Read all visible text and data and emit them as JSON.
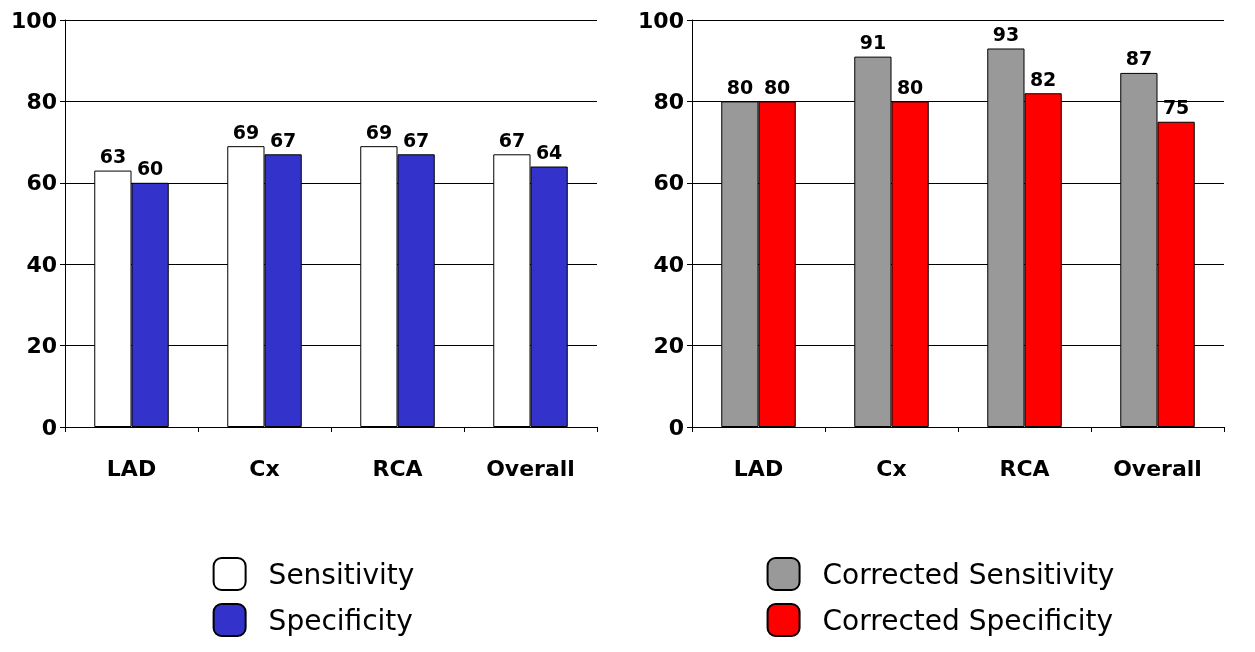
{
  "chart_data": [
    {
      "type": "bar",
      "categories": [
        "LAD",
        "Cx",
        "RCA",
        "Overall"
      ],
      "series": [
        {
          "name": "Sensitivity",
          "color": "#ffffff",
          "values": [
            63,
            69,
            69,
            67
          ]
        },
        {
          "name": "Specificity",
          "color": "#3333cc",
          "values": [
            60,
            67,
            67,
            64
          ]
        }
      ],
      "ylim": [
        0,
        100
      ],
      "yticks": [
        0,
        20,
        40,
        60,
        80,
        100
      ],
      "grid": "y",
      "legend": "bottom",
      "data_labels": true
    },
    {
      "type": "bar",
      "categories": [
        "LAD",
        "Cx",
        "RCA",
        "Overall"
      ],
      "series": [
        {
          "name": "Corrected Sensitivity",
          "color": "#999999",
          "values": [
            80,
            91,
            93,
            87
          ]
        },
        {
          "name": "Corrected Specificity",
          "color": "#ff0000",
          "values": [
            80,
            80,
            82,
            75
          ]
        }
      ],
      "ylim": [
        0,
        100
      ],
      "yticks": [
        0,
        20,
        40,
        60,
        80,
        100
      ],
      "grid": "y",
      "legend": "bottom",
      "data_labels": true
    }
  ]
}
